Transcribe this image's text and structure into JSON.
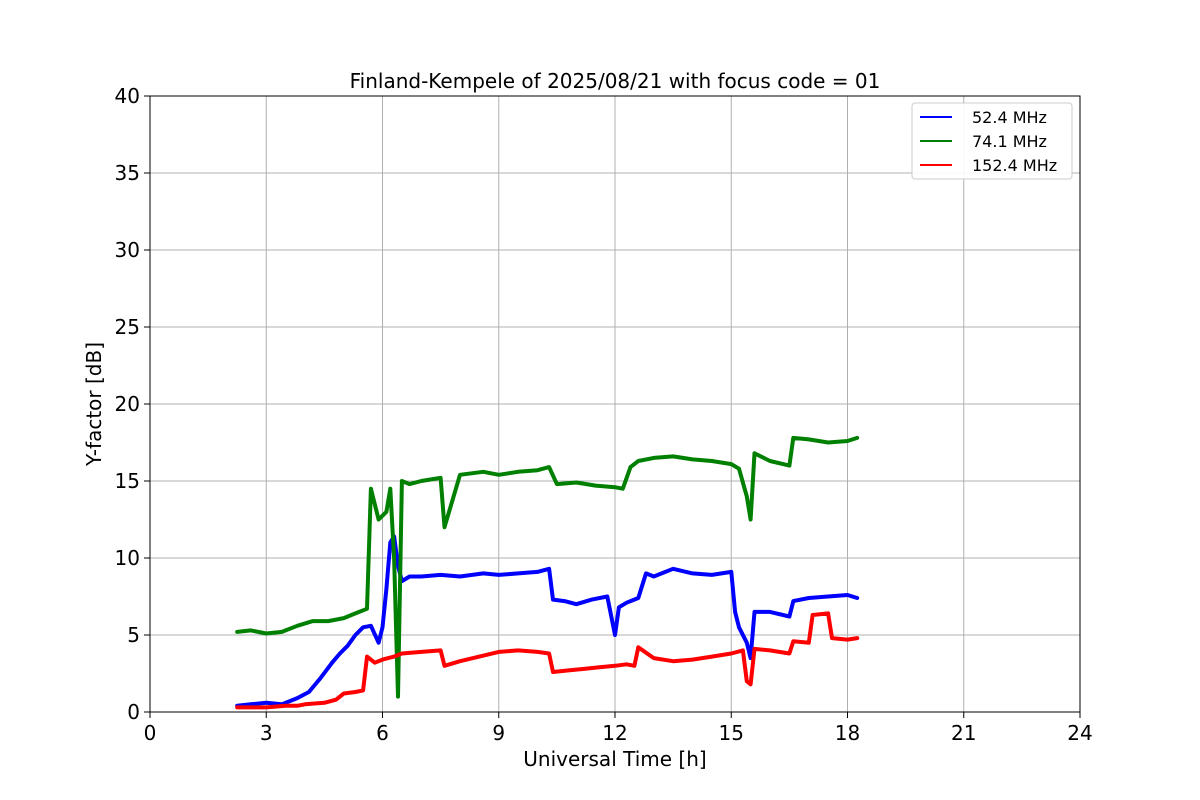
{
  "chart_data": {
    "type": "line",
    "title": "Finland-Kempele of 2025/08/21 with focus code = 01",
    "xlabel": "Universal Time [h]",
    "ylabel": "Y-factor [dB]",
    "xlim": [
      0,
      24
    ],
    "ylim": [
      0,
      40
    ],
    "xticks": [
      0,
      3,
      6,
      9,
      12,
      15,
      18,
      21,
      24
    ],
    "yticks": [
      0,
      5,
      10,
      15,
      20,
      25,
      30,
      35,
      40
    ],
    "grid": true,
    "legend_position": "top-right",
    "series": [
      {
        "name": "52.4 MHz",
        "color": "#0000ff",
        "x": [
          2.25,
          2.6,
          3.0,
          3.4,
          3.8,
          4.1,
          4.4,
          4.7,
          4.9,
          5.1,
          5.3,
          5.5,
          5.7,
          5.9,
          6.0,
          6.1,
          6.2,
          6.3,
          6.4,
          6.5,
          6.7,
          7.0,
          7.5,
          8.0,
          8.6,
          9.0,
          9.5,
          10.0,
          10.3,
          10.4,
          10.7,
          11.0,
          11.4,
          11.8,
          12.0,
          12.1,
          12.3,
          12.6,
          12.8,
          13.0,
          13.5,
          14.0,
          14.5,
          15.0,
          15.1,
          15.2,
          15.4,
          15.5,
          15.6,
          16.0,
          16.5,
          16.6,
          17.0,
          17.5,
          18.0,
          18.25
        ],
        "values": [
          0.4,
          0.5,
          0.6,
          0.5,
          0.9,
          1.3,
          2.2,
          3.2,
          3.8,
          4.3,
          5.0,
          5.5,
          5.6,
          4.5,
          5.5,
          8.0,
          11.0,
          11.4,
          9.5,
          8.5,
          8.8,
          8.8,
          8.9,
          8.8,
          9.0,
          8.9,
          9.0,
          9.1,
          9.3,
          7.3,
          7.2,
          7.0,
          7.3,
          7.5,
          5.0,
          6.8,
          7.1,
          7.4,
          9.0,
          8.8,
          9.3,
          9.0,
          8.9,
          9.1,
          6.5,
          5.5,
          4.5,
          3.5,
          6.5,
          6.5,
          6.2,
          7.2,
          7.4,
          7.5,
          7.6,
          7.4
        ]
      },
      {
        "name": "74.1 MHz",
        "color": "#008000",
        "x": [
          2.25,
          2.6,
          3.0,
          3.4,
          3.8,
          4.2,
          4.6,
          5.0,
          5.3,
          5.6,
          5.7,
          5.9,
          6.1,
          6.2,
          6.3,
          6.4,
          6.5,
          6.7,
          7.0,
          7.5,
          7.6,
          8.0,
          8.6,
          9.0,
          9.5,
          10.0,
          10.3,
          10.5,
          11.0,
          11.5,
          12.0,
          12.2,
          12.4,
          12.6,
          13.0,
          13.5,
          14.0,
          14.5,
          15.0,
          15.2,
          15.4,
          15.5,
          15.6,
          16.0,
          16.5,
          16.6,
          17.0,
          17.5,
          18.0,
          18.25
        ],
        "values": [
          5.2,
          5.3,
          5.1,
          5.2,
          5.6,
          5.9,
          5.9,
          6.1,
          6.4,
          6.7,
          14.5,
          12.5,
          13.0,
          14.5,
          10.0,
          1.0,
          15.0,
          14.8,
          15.0,
          15.2,
          12.0,
          15.4,
          15.6,
          15.4,
          15.6,
          15.7,
          15.9,
          14.8,
          14.9,
          14.7,
          14.6,
          14.5,
          15.9,
          16.3,
          16.5,
          16.6,
          16.4,
          16.3,
          16.1,
          15.8,
          14.0,
          12.5,
          16.8,
          16.3,
          16.0,
          17.8,
          17.7,
          17.5,
          17.6,
          17.8
        ]
      },
      {
        "name": "152.4 MHz",
        "color": "#ff0000",
        "x": [
          2.25,
          2.6,
          3.0,
          3.5,
          3.8,
          4.0,
          4.5,
          4.8,
          5.0,
          5.3,
          5.5,
          5.6,
          5.8,
          6.0,
          6.3,
          6.5,
          7.0,
          7.5,
          7.6,
          8.0,
          8.5,
          9.0,
          9.5,
          10.0,
          10.3,
          10.4,
          10.8,
          11.2,
          11.6,
          12.0,
          12.3,
          12.5,
          12.6,
          13.0,
          13.5,
          14.0,
          14.5,
          15.0,
          15.3,
          15.4,
          15.5,
          15.6,
          16.0,
          16.5,
          16.6,
          17.0,
          17.1,
          17.5,
          17.6,
          18.0,
          18.25
        ],
        "values": [
          0.3,
          0.3,
          0.3,
          0.4,
          0.4,
          0.5,
          0.6,
          0.8,
          1.2,
          1.3,
          1.4,
          3.6,
          3.2,
          3.4,
          3.6,
          3.8,
          3.9,
          4.0,
          3.0,
          3.3,
          3.6,
          3.9,
          4.0,
          3.9,
          3.8,
          2.6,
          2.7,
          2.8,
          2.9,
          3.0,
          3.1,
          3.0,
          4.2,
          3.5,
          3.3,
          3.4,
          3.6,
          3.8,
          4.0,
          2.0,
          1.8,
          4.1,
          4.0,
          3.8,
          4.6,
          4.5,
          6.3,
          6.4,
          4.8,
          4.7,
          4.8
        ]
      }
    ]
  }
}
